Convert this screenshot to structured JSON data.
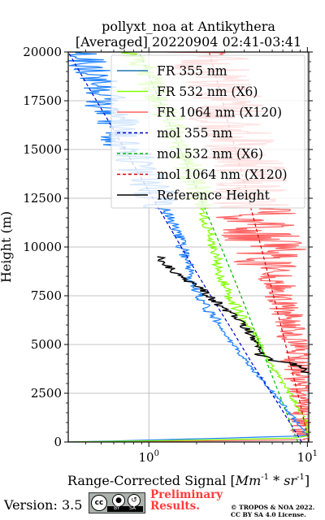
{
  "chart_data": {
    "type": "line",
    "title": "pollyxt_noa at Antikythera",
    "subtitle": "[Averaged] 20220904 02:41-03:41",
    "xlabel_prefix": "Range-Corrected Signal [",
    "xlabel_math": "Mm",
    "xlabel_sup": "-1",
    "xlabel_mid": " * sr",
    "xlabel_sup2": "-1",
    "xlabel_suffix": "]",
    "ylabel": "Height (m)",
    "xscale": "log",
    "xlim": [
      0.31,
      10.2
    ],
    "ylim": [
      0,
      20000
    ],
    "grid": true,
    "legend_position": "top-right",
    "x_ticks": [
      {
        "value": 1,
        "base": "10",
        "exp": "0"
      },
      {
        "value": 10,
        "base": "10",
        "exp": "1"
      }
    ],
    "y_ticks": [
      {
        "value": 0,
        "label": "0"
      },
      {
        "value": 2500,
        "label": "2500"
      },
      {
        "value": 5000,
        "label": "5000"
      },
      {
        "value": 7500,
        "label": "7500"
      },
      {
        "value": 10000,
        "label": "10000"
      },
      {
        "value": 12500,
        "label": "12500"
      },
      {
        "value": 15000,
        "label": "15000"
      },
      {
        "value": 17500,
        "label": "17500"
      },
      {
        "value": 20000,
        "label": "20000"
      }
    ],
    "series": [
      {
        "name": "FR 355 nm",
        "color": "#1f77b4",
        "style": "solid"
      },
      {
        "name": "FR 532 nm (X6)",
        "color": "#80ff00",
        "style": "solid"
      },
      {
        "name": "FR 1064 nm (X120)",
        "color": "#ff6464",
        "style": "solid"
      },
      {
        "name": "mol 355 nm",
        "color": "#0000cc",
        "style": "dashed"
      },
      {
        "name": "mol 532 nm (X6)",
        "color": "#00bb00",
        "style": "dashed"
      },
      {
        "name": "mol 1064 nm (X120)",
        "color": "#dd0000",
        "style": "dashed"
      },
      {
        "name": "Reference Height",
        "color": "#000000",
        "style": "solid"
      }
    ],
    "profiles": {
      "fr355": [
        [
          0,
          0.31
        ],
        [
          50,
          0.6
        ],
        [
          100,
          1.0
        ],
        [
          150,
          1.8
        ],
        [
          200,
          3.0
        ],
        [
          250,
          5.0
        ],
        [
          300,
          8.0
        ],
        [
          350,
          9.8
        ],
        [
          400,
          9.9
        ],
        [
          500,
          9.6
        ],
        [
          1000,
          8.6
        ],
        [
          1500,
          7.7
        ],
        [
          2000,
          6.9
        ],
        [
          2500,
          6.2
        ],
        [
          3000,
          5.4
        ],
        [
          3500,
          4.8
        ],
        [
          4000,
          4.2
        ],
        [
          4500,
          3.8
        ],
        [
          5000,
          3.4
        ],
        [
          5500,
          3.1
        ],
        [
          6000,
          2.8
        ],
        [
          6500,
          2.5
        ],
        [
          7000,
          2.3
        ],
        [
          7500,
          2.1
        ],
        [
          8000,
          1.95
        ],
        [
          8500,
          1.85
        ],
        [
          9000,
          1.8
        ],
        [
          9500,
          1.7
        ],
        [
          10000,
          1.62
        ],
        [
          10500,
          1.55
        ],
        [
          11000,
          1.45
        ],
        [
          11500,
          1.38
        ],
        [
          12000,
          1.25
        ],
        [
          12500,
          1.15
        ],
        [
          13000,
          1.05
        ],
        [
          13500,
          0.95
        ],
        [
          14000,
          0.88
        ],
        [
          14500,
          0.82
        ],
        [
          15000,
          0.76
        ],
        [
          15500,
          0.7
        ],
        [
          16000,
          0.66
        ],
        [
          16500,
          0.62
        ],
        [
          17000,
          0.56
        ],
        [
          17500,
          0.52
        ],
        [
          18000,
          0.48
        ],
        [
          18500,
          0.45
        ],
        [
          19000,
          0.42
        ],
        [
          19500,
          0.38
        ],
        [
          20000,
          0.36
        ]
      ],
      "fr532": [
        [
          0,
          0.31
        ],
        [
          100,
          2.0
        ],
        [
          200,
          8.0
        ],
        [
          300,
          10.1
        ],
        [
          500,
          10.1
        ],
        [
          1000,
          9.8
        ],
        [
          1500,
          9.2
        ],
        [
          2000,
          8.5
        ],
        [
          2500,
          7.7
        ],
        [
          3000,
          7.0
        ],
        [
          3500,
          6.4
        ],
        [
          4000,
          5.8
        ],
        [
          4500,
          5.3
        ],
        [
          5000,
          5.0
        ],
        [
          5500,
          4.7
        ],
        [
          6000,
          4.2
        ],
        [
          6500,
          3.8
        ],
        [
          7000,
          3.5
        ],
        [
          7500,
          3.2
        ],
        [
          8000,
          3.0
        ],
        [
          8500,
          2.85
        ],
        [
          9000,
          2.75
        ],
        [
          9500,
          2.65
        ],
        [
          10000,
          2.55
        ],
        [
          10500,
          2.45
        ],
        [
          11000,
          2.35
        ],
        [
          11500,
          2.25
        ],
        [
          12000,
          2.2
        ],
        [
          12500,
          2.1
        ],
        [
          13000,
          2.0
        ],
        [
          13500,
          1.9
        ],
        [
          14000,
          1.8
        ],
        [
          14500,
          1.7
        ],
        [
          15000,
          1.6
        ],
        [
          15500,
          1.52
        ],
        [
          16000,
          1.45
        ],
        [
          16500,
          1.35
        ],
        [
          17000,
          1.25
        ],
        [
          17500,
          1.18
        ],
        [
          18000,
          1.1
        ],
        [
          18500,
          1.02
        ],
        [
          19000,
          0.95
        ],
        [
          19500,
          0.88
        ],
        [
          20000,
          0.83
        ]
      ],
      "fr1064": [
        [
          0,
          0.31
        ],
        [
          50,
          2.0
        ],
        [
          100,
          7.0
        ],
        [
          200,
          10.1
        ],
        [
          2000,
          9.6
        ],
        [
          4000,
          8.8
        ],
        [
          6000,
          7.7
        ],
        [
          8000,
          6.6
        ],
        [
          10000,
          5.4
        ],
        [
          11000,
          5.0
        ],
        [
          12000,
          4.6
        ],
        [
          13000,
          4.3
        ],
        [
          14000,
          4.0
        ],
        [
          15000,
          3.7
        ],
        [
          16000,
          3.4
        ],
        [
          17000,
          3.1
        ],
        [
          18000,
          2.8
        ],
        [
          19000,
          2.55
        ],
        [
          20000,
          2.3
        ]
      ],
      "ref": [
        [
          3500,
          10.0
        ],
        [
          3800,
          9.5
        ],
        [
          4000,
          8.0
        ],
        [
          4200,
          6.0
        ],
        [
          4500,
          5.0
        ],
        [
          5000,
          4.6
        ],
        [
          5500,
          4.4
        ],
        [
          6000,
          4.0
        ],
        [
          6500,
          3.4
        ],
        [
          7000,
          2.8
        ],
        [
          7500,
          2.4
        ],
        [
          8000,
          2.0
        ],
        [
          8500,
          1.6
        ],
        [
          9000,
          1.3
        ],
        [
          9500,
          1.2
        ]
      ],
      "mol355": [
        [
          0,
          9.2
        ],
        [
          2000,
          6.5
        ],
        [
          4000,
          4.5
        ],
        [
          6000,
          3.2
        ],
        [
          8000,
          2.25
        ],
        [
          10000,
          1.6
        ],
        [
          12000,
          1.15
        ],
        [
          14000,
          0.83
        ],
        [
          16000,
          0.6
        ],
        [
          18000,
          0.43
        ],
        [
          20000,
          0.31
        ]
      ],
      "mol532": [
        [
          0,
          8.7
        ],
        [
          2000,
          7.0
        ],
        [
          4000,
          5.6
        ],
        [
          6000,
          4.5
        ],
        [
          8000,
          3.6
        ],
        [
          10000,
          2.85
        ],
        [
          12000,
          2.25
        ],
        [
          14000,
          1.78
        ],
        [
          16000,
          1.4
        ],
        [
          18000,
          1.1
        ],
        [
          20000,
          0.87
        ]
      ],
      "mol1064": [
        [
          0,
          10.2
        ],
        [
          2000,
          9.0
        ],
        [
          4000,
          7.8
        ],
        [
          6000,
          6.8
        ],
        [
          8000,
          5.9
        ],
        [
          10000,
          5.1
        ],
        [
          12000,
          4.4
        ],
        [
          14000,
          3.8
        ],
        [
          16000,
          3.25
        ],
        [
          18000,
          2.8
        ],
        [
          20000,
          2.4
        ]
      ]
    }
  },
  "footer": {
    "version": "Version: 3.5",
    "license_icons": {
      "cc": "cc",
      "by": "BY",
      "sa": "SA"
    },
    "preliminary_line1": "Preliminary",
    "preliminary_line2": "Results.",
    "copyright_line1": "© TROPOS & NOA 2022.",
    "copyright_line2": "CC BY SA 4.0 License."
  }
}
